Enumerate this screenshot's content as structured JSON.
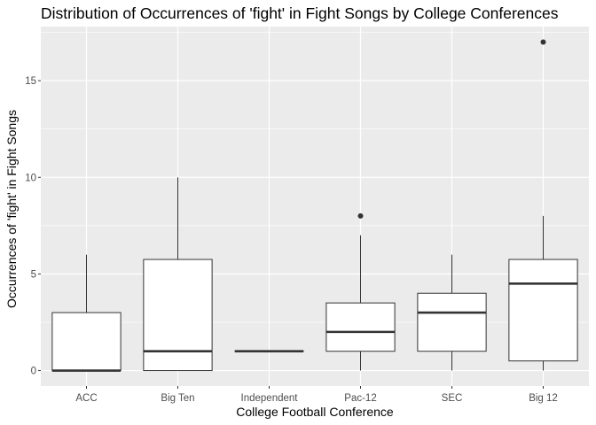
{
  "chart_data": {
    "type": "boxplot",
    "title": "Distribution of Occurrences of 'fight' in Fight Songs by College Conferences",
    "xlabel": "College Football Conference",
    "ylabel": "Occurrences of 'fight' in Fight Songs",
    "ylim": [
      -0.8,
      17.8
    ],
    "yticks": [
      0,
      5,
      10,
      15
    ],
    "grid": true,
    "categories": [
      "ACC",
      "Big Ten",
      "Independent",
      "Pac-12",
      "SEC",
      "Big 12"
    ],
    "boxes": [
      {
        "category": "ACC",
        "whisker_low": 0,
        "q1": 0,
        "median": 0,
        "q3": 3,
        "whisker_high": 6,
        "outliers": []
      },
      {
        "category": "Big Ten",
        "whisker_low": 0,
        "q1": 0,
        "median": 1,
        "q3": 5.75,
        "whisker_high": 10,
        "outliers": []
      },
      {
        "category": "Independent",
        "whisker_low": 1,
        "q1": 1,
        "median": 1,
        "q3": 1,
        "whisker_high": 1,
        "outliers": []
      },
      {
        "category": "Pac-12",
        "whisker_low": 0,
        "q1": 1,
        "median": 2,
        "q3": 3.5,
        "whisker_high": 7,
        "outliers": [
          8
        ]
      },
      {
        "category": "SEC",
        "whisker_low": 0,
        "q1": 1,
        "median": 3,
        "q3": 4,
        "whisker_high": 6,
        "outliers": []
      },
      {
        "category": "Big 12",
        "whisker_low": 0,
        "q1": 0.5,
        "median": 4.5,
        "q3": 5.75,
        "whisker_high": 8,
        "outliers": [
          17
        ]
      }
    ]
  }
}
